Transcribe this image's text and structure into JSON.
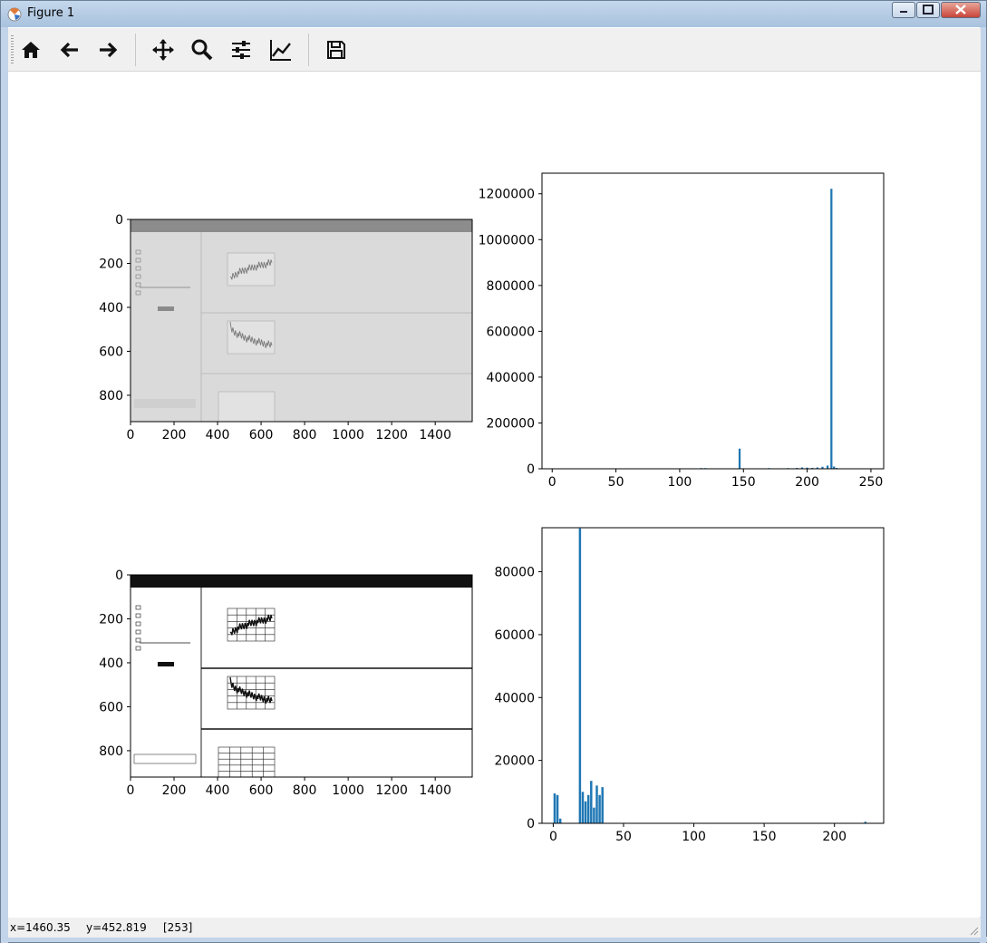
{
  "window": {
    "title": "Figure 1"
  },
  "toolbar": {
    "buttons": [
      {
        "name": "home-icon"
      },
      {
        "name": "back-icon"
      },
      {
        "name": "forward-icon"
      },
      {
        "name": "pan-icon"
      },
      {
        "name": "zoom-icon"
      },
      {
        "name": "configure-subplots-icon"
      },
      {
        "name": "edit-axis-icon"
      },
      {
        "name": "save-icon"
      }
    ]
  },
  "status": {
    "x": "x=1460.35",
    "y": "y=452.819",
    "value": "[253]"
  },
  "chart_data": [
    {
      "type": "image",
      "ylim": [
        0,
        920
      ],
      "xlim": [
        0,
        1570
      ],
      "xticks": [
        "0",
        "200",
        "400",
        "600",
        "800",
        "1000",
        "1200",
        "1400"
      ],
      "yticks": [
        "0",
        "200",
        "400",
        "600",
        "800"
      ],
      "tone": "grayscale-original"
    },
    {
      "type": "bar",
      "xlim": [
        -8,
        260
      ],
      "ylim": [
        0,
        1290000
      ],
      "xticks": [
        "0",
        "50",
        "100",
        "150",
        "200",
        "250"
      ],
      "yticks": [
        "0",
        "200000",
        "400000",
        "600000",
        "800000",
        "1000000",
        "1200000"
      ],
      "x": [
        117,
        120,
        147,
        170,
        185,
        192,
        196,
        200,
        204,
        208,
        212,
        216,
        219,
        221,
        223
      ],
      "values": [
        3000,
        3000,
        88000,
        3000,
        3000,
        4000,
        6000,
        5000,
        4000,
        6000,
        9000,
        14000,
        1222000,
        10000,
        4000
      ],
      "color": "#1f77b4"
    },
    {
      "type": "image",
      "ylim": [
        0,
        920
      ],
      "xlim": [
        0,
        1570
      ],
      "xticks": [
        "0",
        "200",
        "400",
        "600",
        "800",
        "1000",
        "1200",
        "1400"
      ],
      "yticks": [
        "0",
        "200",
        "400",
        "600",
        "800"
      ],
      "tone": "equalized-contrast"
    },
    {
      "type": "bar",
      "xlim": [
        -8,
        235
      ],
      "ylim": [
        0,
        94000
      ],
      "xticks": [
        "0",
        "50",
        "100",
        "150",
        "200"
      ],
      "yticks": [
        "0",
        "20000",
        "40000",
        "60000",
        "80000"
      ],
      "x": [
        1,
        3,
        5,
        19,
        21,
        23,
        25,
        27,
        29,
        31,
        33,
        35,
        222
      ],
      "values": [
        9500,
        9000,
        1500,
        93800,
        10000,
        7000,
        9000,
        13500,
        5000,
        12000,
        9000,
        11500,
        500
      ],
      "color": "#1f77b4"
    }
  ]
}
